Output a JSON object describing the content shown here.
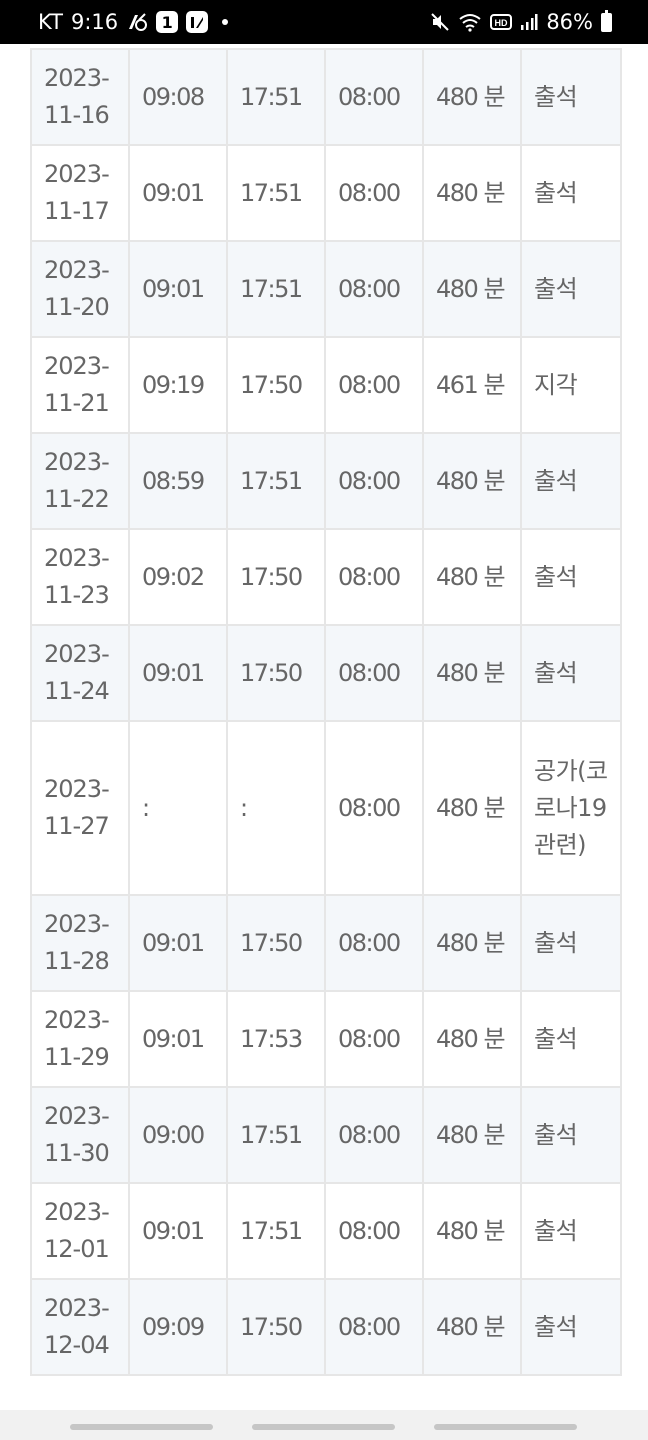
{
  "status_bar": {
    "carrier": "KT",
    "time": "9:16",
    "notification_badge": "1",
    "battery": "86%",
    "icons": [
      "call-forward-icon",
      "notification-badge-icon",
      "app-icon",
      "mute-icon",
      "wifi-icon",
      "hd-icon",
      "signal-icon",
      "battery-icon"
    ]
  },
  "table": {
    "rows": [
      {
        "date": "2023-11-16",
        "check_in": "09:08",
        "check_out": "17:51",
        "hours": "08:00",
        "minutes": "480 분",
        "status": "출석"
      },
      {
        "date": "2023-11-17",
        "check_in": "09:01",
        "check_out": "17:51",
        "hours": "08:00",
        "minutes": "480 분",
        "status": "출석"
      },
      {
        "date": "2023-11-20",
        "check_in": "09:01",
        "check_out": "17:51",
        "hours": "08:00",
        "minutes": "480 분",
        "status": "출석"
      },
      {
        "date": "2023-11-21",
        "check_in": "09:19",
        "check_out": "17:50",
        "hours": "08:00",
        "minutes": "461 분",
        "status": "지각"
      },
      {
        "date": "2023-11-22",
        "check_in": "08:59",
        "check_out": "17:51",
        "hours": "08:00",
        "minutes": "480 분",
        "status": "출석"
      },
      {
        "date": "2023-11-23",
        "check_in": "09:02",
        "check_out": "17:50",
        "hours": "08:00",
        "minutes": "480 분",
        "status": "출석"
      },
      {
        "date": "2023-11-24",
        "check_in": "09:01",
        "check_out": "17:50",
        "hours": "08:00",
        "minutes": "480 분",
        "status": "출석"
      },
      {
        "date": "2023-11-27",
        "check_in": ":",
        "check_out": ":",
        "hours": "08:00",
        "minutes": "480 분",
        "status": "공가(코로나19 관련)"
      },
      {
        "date": "2023-11-28",
        "check_in": "09:01",
        "check_out": "17:50",
        "hours": "08:00",
        "minutes": "480 분",
        "status": "출석"
      },
      {
        "date": "2023-11-29",
        "check_in": "09:01",
        "check_out": "17:53",
        "hours": "08:00",
        "minutes": "480 분",
        "status": "출석"
      },
      {
        "date": "2023-11-30",
        "check_in": "09:00",
        "check_out": "17:51",
        "hours": "08:00",
        "minutes": "480 분",
        "status": "출석"
      },
      {
        "date": "2023-12-01",
        "check_in": "09:01",
        "check_out": "17:51",
        "hours": "08:00",
        "minutes": "480 분",
        "status": "출석"
      },
      {
        "date": "2023-12-04",
        "check_in": "09:09",
        "check_out": "17:50",
        "hours": "08:00",
        "minutes": "480 분",
        "status": "출석"
      }
    ]
  },
  "colors": {
    "status_bar_bg": "#000000",
    "text": "#666666",
    "row_shade": "#f4f7fa",
    "border": "#e6e6e6"
  }
}
